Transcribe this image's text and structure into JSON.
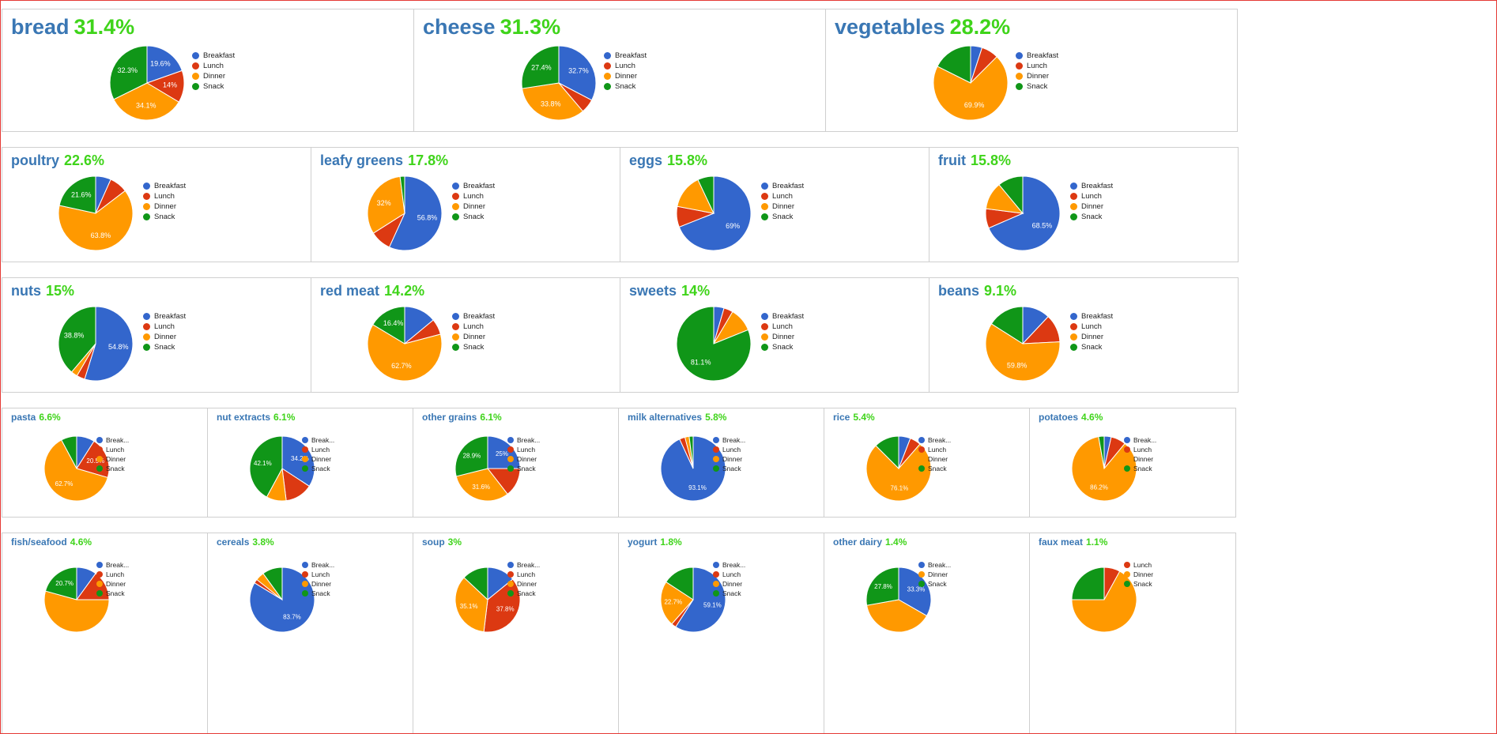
{
  "colors": {
    "Breakfast": "#3366cc",
    "Lunch": "#dc3912",
    "Dinner": "#ff9900",
    "Snack": "#109618"
  },
  "legend_labels": {
    "full": {
      "Breakfast": "Breakfast",
      "Lunch": "Lunch",
      "Dinner": "Dinner",
      "Snack": "Snack"
    },
    "short": {
      "Breakfast": "Break...",
      "Lunch": "Lunch",
      "Dinner": "Dinner",
      "Snack": "Snack"
    }
  },
  "chart_data": [
    {
      "type": "pie",
      "title": "bread",
      "share": "31.4%",
      "categories": [
        "Breakfast",
        "Lunch",
        "Dinner",
        "Snack"
      ],
      "values": [
        19.6,
        14,
        34.1,
        32.3
      ],
      "labels": [
        "19.6%",
        "14%",
        "34.1%",
        "32.3%"
      ]
    },
    {
      "type": "pie",
      "title": "cheese",
      "share": "31.3%",
      "categories": [
        "Breakfast",
        "Lunch",
        "Dinner",
        "Snack"
      ],
      "values": [
        32.7,
        6.1,
        33.8,
        27.4
      ],
      "labels": [
        "32.7%",
        "",
        "33.8%",
        "27.4%"
      ]
    },
    {
      "type": "pie",
      "title": "vegetables",
      "share": "28.2%",
      "categories": [
        "Breakfast",
        "Lunch",
        "Dinner",
        "Snack"
      ],
      "values": [
        5,
        7.5,
        69.9,
        17.6
      ],
      "labels": [
        "",
        "",
        "69.9%",
        ""
      ]
    },
    {
      "type": "pie",
      "title": "poultry",
      "share": "22.6%",
      "categories": [
        "Breakfast",
        "Lunch",
        "Dinner",
        "Snack"
      ],
      "values": [
        6.7,
        7.9,
        63.8,
        21.6
      ],
      "labels": [
        "",
        "",
        "63.8%",
        "21.6%"
      ]
    },
    {
      "type": "pie",
      "title": "leafy greens",
      "share": "17.8%",
      "categories": [
        "Breakfast",
        "Lunch",
        "Dinner",
        "Snack"
      ],
      "values": [
        56.8,
        9.2,
        32,
        2
      ],
      "labels": [
        "56.8%",
        "",
        "32%",
        ""
      ]
    },
    {
      "type": "pie",
      "title": "eggs",
      "share": "15.8%",
      "categories": [
        "Breakfast",
        "Lunch",
        "Dinner",
        "Snack"
      ],
      "values": [
        69,
        9,
        15,
        7
      ],
      "labels": [
        "69%",
        "",
        "",
        ""
      ]
    },
    {
      "type": "pie",
      "title": "fruit",
      "share": "15.8%",
      "categories": [
        "Breakfast",
        "Lunch",
        "Dinner",
        "Snack"
      ],
      "values": [
        68.5,
        8.5,
        12,
        11
      ],
      "labels": [
        "68.5%",
        "",
        "",
        ""
      ]
    },
    {
      "type": "pie",
      "title": "nuts",
      "share": "15%",
      "categories": [
        "Breakfast",
        "Lunch",
        "Dinner",
        "Snack"
      ],
      "values": [
        54.8,
        3.6,
        2.8,
        38.8
      ],
      "labels": [
        "54.8%",
        "",
        "",
        "38.8%"
      ]
    },
    {
      "type": "pie",
      "title": "red meat",
      "share": "14.2%",
      "categories": [
        "Breakfast",
        "Lunch",
        "Dinner",
        "Snack"
      ],
      "values": [
        14,
        6.9,
        62.7,
        16.4
      ],
      "labels": [
        "",
        "",
        "62.7%",
        "16.4%"
      ]
    },
    {
      "type": "pie",
      "title": "sweets",
      "share": "14%",
      "categories": [
        "Breakfast",
        "Lunch",
        "Dinner",
        "Snack"
      ],
      "values": [
        4.5,
        4,
        10.4,
        81.1
      ],
      "labels": [
        "",
        "",
        "",
        "81.1%"
      ]
    },
    {
      "type": "pie",
      "title": "beans",
      "share": "9.1%",
      "categories": [
        "Breakfast",
        "Lunch",
        "Dinner",
        "Snack"
      ],
      "values": [
        12,
        12.2,
        59.8,
        16
      ],
      "labels": [
        "",
        "",
        "59.8%",
        ""
      ]
    },
    {
      "type": "pie",
      "title": "pasta",
      "share": "6.6%",
      "categories": [
        "Breakfast",
        "Lunch",
        "Dinner",
        "Snack"
      ],
      "values": [
        9,
        20.5,
        62.7,
        7.8
      ],
      "labels": [
        "",
        "20.5%",
        "62.7%",
        ""
      ]
    },
    {
      "type": "pie",
      "title": "nut extracts",
      "share": "6.1%",
      "categories": [
        "Breakfast",
        "Lunch",
        "Dinner",
        "Snack"
      ],
      "values": [
        34.2,
        13.8,
        9.9,
        42.1
      ],
      "labels": [
        "34.2%",
        "",
        "",
        "42.1%"
      ]
    },
    {
      "type": "pie",
      "title": "other grains",
      "share": "6.1%",
      "categories": [
        "Breakfast",
        "Lunch",
        "Dinner",
        "Snack"
      ],
      "values": [
        25,
        14.5,
        31.6,
        28.9
      ],
      "labels": [
        "25%",
        "",
        "31.6%",
        "28.9%"
      ]
    },
    {
      "type": "pie",
      "title": "milk alternatives",
      "share": "5.8%",
      "categories": [
        "Breakfast",
        "Lunch",
        "Dinner",
        "Snack"
      ],
      "values": [
        93.1,
        2.8,
        2.1,
        2
      ],
      "labels": [
        "93.1%",
        "",
        "",
        ""
      ]
    },
    {
      "type": "pie",
      "title": "rice",
      "share": "5.4%",
      "categories": [
        "Breakfast",
        "Lunch",
        "Dinner",
        "Snack"
      ],
      "values": [
        5.9,
        5.5,
        76.1,
        12.5
      ],
      "labels": [
        "",
        "",
        "76.1%",
        ""
      ]
    },
    {
      "type": "pie",
      "title": "potatoes",
      "share": "4.6%",
      "categories": [
        "Breakfast",
        "Lunch",
        "Dinner",
        "Snack"
      ],
      "values": [
        3.5,
        7.5,
        86.2,
        2.8
      ],
      "labels": [
        "",
        "",
        "86.2%",
        ""
      ]
    },
    {
      "type": "pie",
      "title": "fish/seafood",
      "share": "4.6%",
      "categories": [
        "Breakfast",
        "Lunch",
        "Dinner",
        "Snack"
      ],
      "values": [
        10,
        15,
        54.3,
        20.7
      ],
      "labels": [
        "",
        "",
        "",
        "20.7%"
      ]
    },
    {
      "type": "pie",
      "title": "cereals",
      "share": "3.8%",
      "categories": [
        "Breakfast",
        "Lunch",
        "Dinner",
        "Snack"
      ],
      "values": [
        83.7,
        2,
        4.3,
        10
      ],
      "labels": [
        "83.7%",
        "",
        "",
        ""
      ]
    },
    {
      "type": "pie",
      "title": "soup",
      "share": "3%",
      "categories": [
        "Breakfast",
        "Lunch",
        "Dinner",
        "Snack"
      ],
      "values": [
        14.1,
        37.8,
        35.1,
        13
      ],
      "labels": [
        "",
        "37.8%",
        "35.1%",
        ""
      ]
    },
    {
      "type": "pie",
      "title": "yogurt",
      "share": "1.8%",
      "categories": [
        "Breakfast",
        "Lunch",
        "Dinner",
        "Snack"
      ],
      "values": [
        59.1,
        2.4,
        22.7,
        15.8
      ],
      "labels": [
        "59.1%",
        "",
        "22.7%",
        ""
      ]
    },
    {
      "type": "pie",
      "title": "other dairy",
      "share": "1.4%",
      "categories": [
        "Breakfast",
        "Dinner",
        "Snack"
      ],
      "values": [
        33.3,
        38.9,
        27.8
      ],
      "labels": [
        "33.3%",
        "",
        "27.8%"
      ]
    },
    {
      "type": "pie",
      "title": "faux meat",
      "share": "1.1%",
      "categories": [
        "Lunch",
        "Dinner",
        "Snack"
      ],
      "values": [
        8,
        67,
        25
      ],
      "labels": [
        "",
        "",
        ""
      ]
    }
  ]
}
